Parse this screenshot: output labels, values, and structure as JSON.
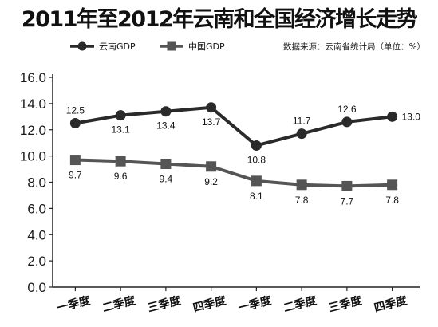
{
  "chart_data": {
    "type": "line",
    "title": "2011年至2012年云南和全国经济增长走势",
    "source": "数据来源：云南省统计局（单位：%）",
    "categories": [
      "一季度",
      "二季度",
      "三季度",
      "四季度",
      "一季度",
      "二季度",
      "三季度",
      "四季度"
    ],
    "ylim": [
      0,
      16
    ],
    "yticks": [
      "0.0",
      "2.0",
      "4.0",
      "6.0",
      "8.0",
      "10.0",
      "12.0",
      "14.0",
      "16.0"
    ],
    "grid": false,
    "legend_position": "top-left",
    "series": [
      {
        "name": "云南GDP",
        "marker": "circle",
        "color": "#2a2a2a",
        "values": [
          12.5,
          13.1,
          13.4,
          13.7,
          10.8,
          11.7,
          12.6,
          13.0
        ],
        "labels": [
          "12.5",
          "13.1",
          "13.4",
          "13.7",
          "10.8",
          "11.7",
          "12.6",
          "13.0"
        ]
      },
      {
        "name": "中国GDP",
        "marker": "square",
        "color": "#555555",
        "values": [
          9.7,
          9.6,
          9.4,
          9.2,
          8.1,
          7.8,
          7.7,
          7.8
        ],
        "labels": [
          "9.7",
          "9.6",
          "9.4",
          "9.2",
          "8.1",
          "7.8",
          "7.7",
          "7.8"
        ]
      }
    ]
  }
}
